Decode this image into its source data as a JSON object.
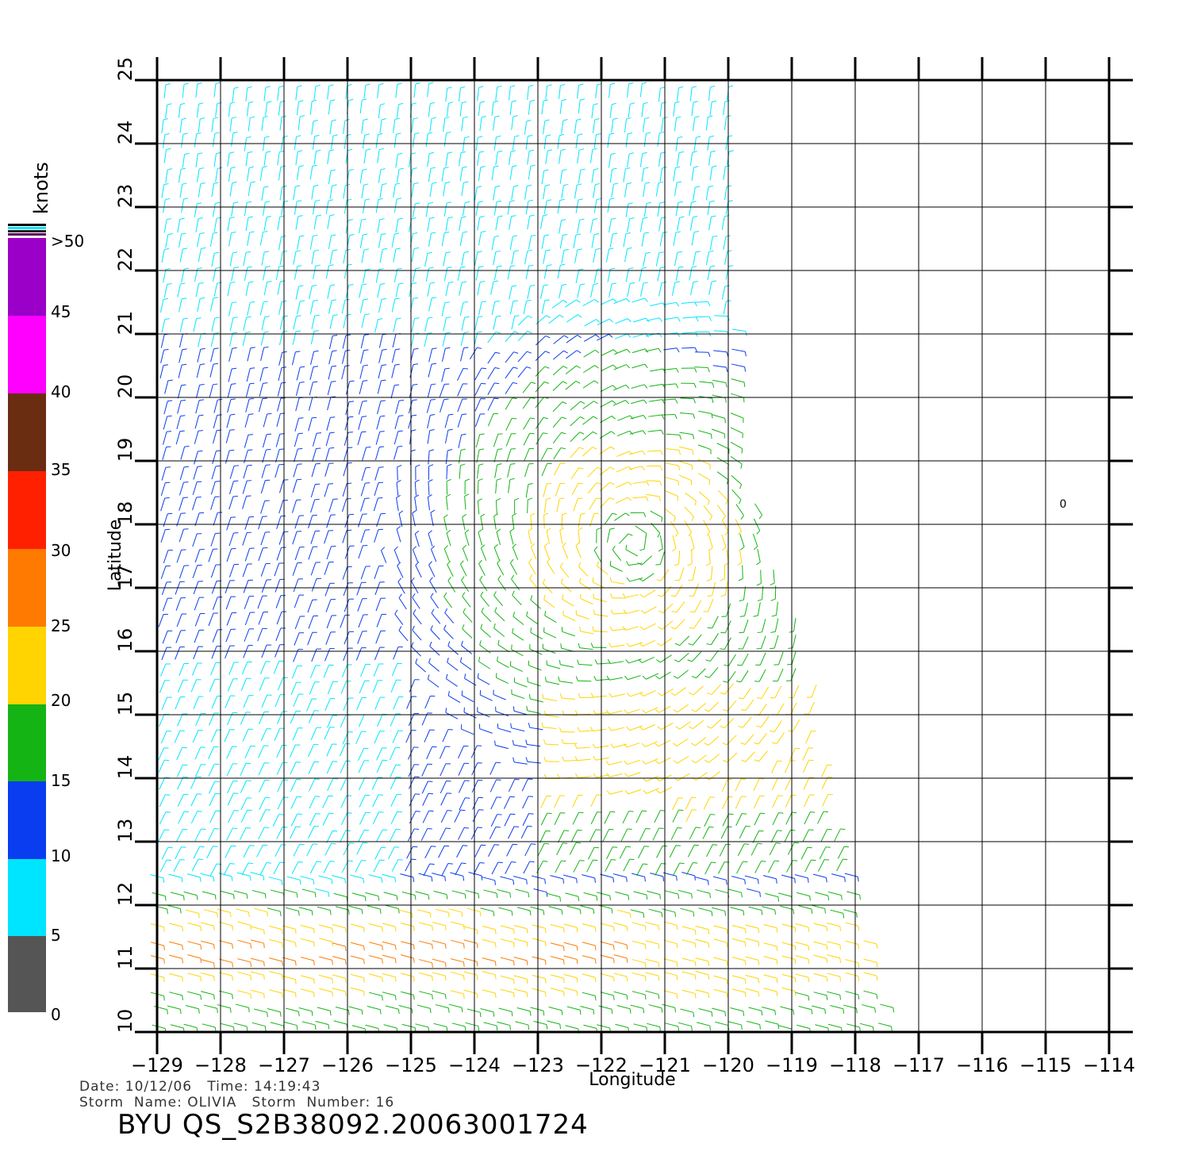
{
  "map": {
    "lon_range": [
      -129,
      -114
    ],
    "lat_range": [
      10,
      25
    ],
    "lon_ticks": [
      "-129",
      "-128",
      "-127",
      "-126",
      "-125",
      "-124",
      "-123",
      "-122",
      "-121",
      "-120",
      "-119",
      "-118",
      "-117",
      "-116",
      "-115",
      "-114"
    ],
    "lat_ticks": [
      "10",
      "11",
      "12",
      "13",
      "14",
      "15",
      "16",
      "17",
      "18",
      "19",
      "20",
      "21",
      "22",
      "23",
      "24",
      "25"
    ],
    "xlabel": "Longitude",
    "ylabel": "Latitude",
    "grid": true,
    "storm_center_approx": {
      "lon": -121.5,
      "lat": 17.7
    },
    "swath_note_symbol": "0"
  },
  "colorbar": {
    "unit": "knots",
    "labels": [
      "0",
      "5",
      "10",
      "15",
      "20",
      "25",
      "30",
      "35",
      "40",
      "45",
      ">50"
    ],
    "colors": {
      "0-5": "#555555",
      "5-10": "#00e5ff",
      "10-15": "#0a3cf0",
      "15-20": "#14b414",
      "20-25": "#ffd400",
      "25-30": "#ff7a00",
      "30-35": "#ff2000",
      "35-40": "#6a2d12",
      "40-45": "#ff00ff",
      "45-50": "#9a00c8"
    }
  },
  "info": {
    "date_label": "Date:",
    "date": "10/12/06",
    "time_label": "Time:",
    "time": "14:19:43",
    "storm_name_label": "Storm  Name:",
    "storm_name": "OLIVIA",
    "storm_number_label": "Storm  Number:",
    "storm_number": "16",
    "line1": "Date: 10/12/06   Time: 14:19:43",
    "line2": "Storm  Name: OLIVIA   Storm  Number: 16"
  },
  "file_id": "BYU  QS_S2B38092.20063001724"
}
